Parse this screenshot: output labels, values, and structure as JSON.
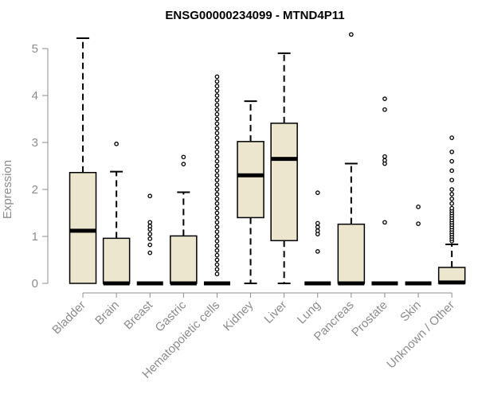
{
  "chart_data": {
    "type": "boxplot",
    "title": "ENSG00000234099 - MTND4P11",
    "xlabel": "",
    "ylabel": "Expression",
    "ylim": [
      0,
      5.5
    ],
    "yticks": [
      0,
      1,
      2,
      3,
      4,
      5
    ],
    "grid": false,
    "box_color": "#ede6cf",
    "categories": [
      "Bladder",
      "Brain",
      "Breast",
      "Gastric",
      "Hematopoietic cells",
      "Kidney",
      "Liver",
      "Lung",
      "Pancreas",
      "Prostate",
      "Skin",
      "Unknown / Other"
    ],
    "boxes": [
      {
        "q1": 0,
        "median": 1.12,
        "q3": 2.36,
        "whisker_low": 0,
        "whisker_high": 5.22,
        "outliers": []
      },
      {
        "q1": 0,
        "median": 0,
        "q3": 0.96,
        "whisker_low": 0,
        "whisker_high": 2.38,
        "outliers": [
          2.97
        ]
      },
      {
        "q1": 0,
        "median": 0,
        "q3": 0,
        "whisker_low": 0,
        "whisker_high": 0,
        "outliers": [
          0.65,
          0.82,
          0.95,
          1.05,
          1.15,
          1.22,
          1.3,
          1.86
        ]
      },
      {
        "q1": 0,
        "median": 0,
        "q3": 1.01,
        "whisker_low": 0,
        "whisker_high": 1.94,
        "outliers": [
          2.54,
          2.69
        ]
      },
      {
        "q1": 0,
        "median": 0,
        "q3": 0,
        "whisker_low": 0,
        "whisker_high": 0,
        "outliers": [
          0.2,
          0.3,
          0.4,
          0.5,
          0.6,
          0.7,
          0.8,
          0.9,
          1.0,
          1.1,
          1.2,
          1.3,
          1.4,
          1.5,
          1.6,
          1.7,
          1.8,
          1.9,
          2.0,
          2.1,
          2.2,
          2.3,
          2.4,
          2.5,
          2.6,
          2.7,
          2.8,
          2.9,
          3.0,
          3.1,
          3.2,
          3.3,
          3.4,
          3.5,
          3.6,
          3.7,
          3.8,
          3.9,
          4.0,
          4.1,
          4.2,
          4.3,
          4.4
        ]
      },
      {
        "q1": 1.4,
        "median": 2.3,
        "q3": 3.02,
        "whisker_low": 0,
        "whisker_high": 3.88,
        "outliers": []
      },
      {
        "q1": 0.91,
        "median": 2.65,
        "q3": 3.41,
        "whisker_low": 0,
        "whisker_high": 4.9,
        "outliers": []
      },
      {
        "q1": 0,
        "median": 0,
        "q3": 0,
        "whisker_low": 0,
        "whisker_high": 0,
        "outliers": [
          0.68,
          1.05,
          1.12,
          1.2,
          1.28,
          1.93
        ]
      },
      {
        "q1": 0,
        "median": 0,
        "q3": 1.26,
        "whisker_low": 0,
        "whisker_high": 2.55,
        "outliers": [
          5.3
        ]
      },
      {
        "q1": 0,
        "median": 0,
        "q3": 0,
        "whisker_low": 0,
        "whisker_high": 0,
        "outliers": [
          1.3,
          2.55,
          2.62,
          2.7,
          3.7,
          3.93
        ]
      },
      {
        "q1": 0,
        "median": 0,
        "q3": 0,
        "whisker_low": 0,
        "whisker_high": 0,
        "outliers": [
          1.27,
          1.63
        ]
      },
      {
        "q1": 0,
        "median": 0.02,
        "q3": 0.34,
        "whisker_low": 0,
        "whisker_high": 0.83,
        "outliers": [
          0.9,
          0.95,
          1.0,
          1.05,
          1.1,
          1.15,
          1.2,
          1.25,
          1.3,
          1.35,
          1.4,
          1.45,
          1.5,
          1.55,
          1.6,
          1.7,
          1.8,
          1.9,
          2.0,
          2.2,
          2.4,
          2.6,
          2.8,
          3.1
        ]
      }
    ]
  }
}
